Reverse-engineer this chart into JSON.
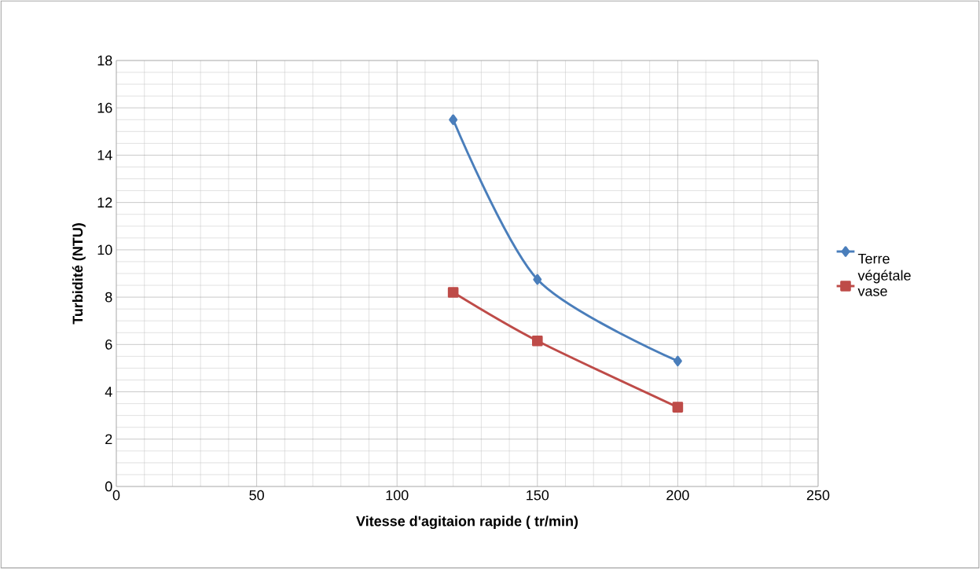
{
  "chart_data": {
    "type": "line",
    "xlabel": "Vitesse d'agitaion rapide ( tr/min)",
    "ylabel": "Turbidité (NTU)",
    "xlim": [
      0,
      250
    ],
    "ylim": [
      0,
      18
    ],
    "xticks": [
      0,
      50,
      100,
      150,
      200,
      250
    ],
    "yticks": [
      0,
      2,
      4,
      6,
      8,
      10,
      12,
      14,
      16,
      18
    ],
    "grid": true,
    "legend": "right",
    "line_style": "solid",
    "series": [
      {
        "name": "Terre végétale",
        "color": "#4a7ebb",
        "marker": "diamond",
        "x": [
          120,
          150,
          200
        ],
        "values": [
          15.5,
          8.75,
          5.3
        ]
      },
      {
        "name": "vase",
        "color": "#be4b48",
        "marker": "square",
        "x": [
          120,
          150,
          200
        ],
        "values": [
          8.2,
          6.15,
          3.35
        ]
      }
    ]
  }
}
